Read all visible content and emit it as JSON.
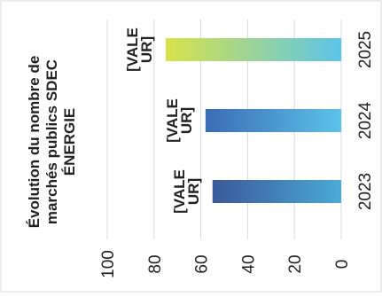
{
  "chart_data": {
    "type": "bar",
    "orientation": "horizontal",
    "rotation": "rotated 90° counter-clockwise",
    "title": "Évolution du nombre de marchés publics SDEC ÉNERGIE",
    "title_lines": [
      "Évolution du nombre de",
      "marchés publics SDEC",
      "ÉNERGIE"
    ],
    "categories": [
      "2023",
      "2024",
      "2025"
    ],
    "values": [
      55,
      58,
      75
    ],
    "data_labels": [
      "[VALE UR]",
      "[VALE UR]",
      "[VALE UR]"
    ],
    "data_label_lines": [
      "[VALE",
      "UR]"
    ],
    "value_axis": {
      "range": [
        0,
        100
      ],
      "ticks": [
        "0",
        "20",
        "40",
        "60",
        "80",
        "100"
      ]
    },
    "grid": true,
    "legend": "none",
    "colors": {
      "2023": [
        "#3a5a99",
        "#4aa9d8"
      ],
      "2024": [
        "#3b6cb5",
        "#5bc3ea"
      ],
      "2025": [
        "#d8e24a",
        "#5cc4ea"
      ],
      "grid": "#d9d9d9",
      "text": "#222222",
      "frame": "#d9d9d9"
    }
  }
}
